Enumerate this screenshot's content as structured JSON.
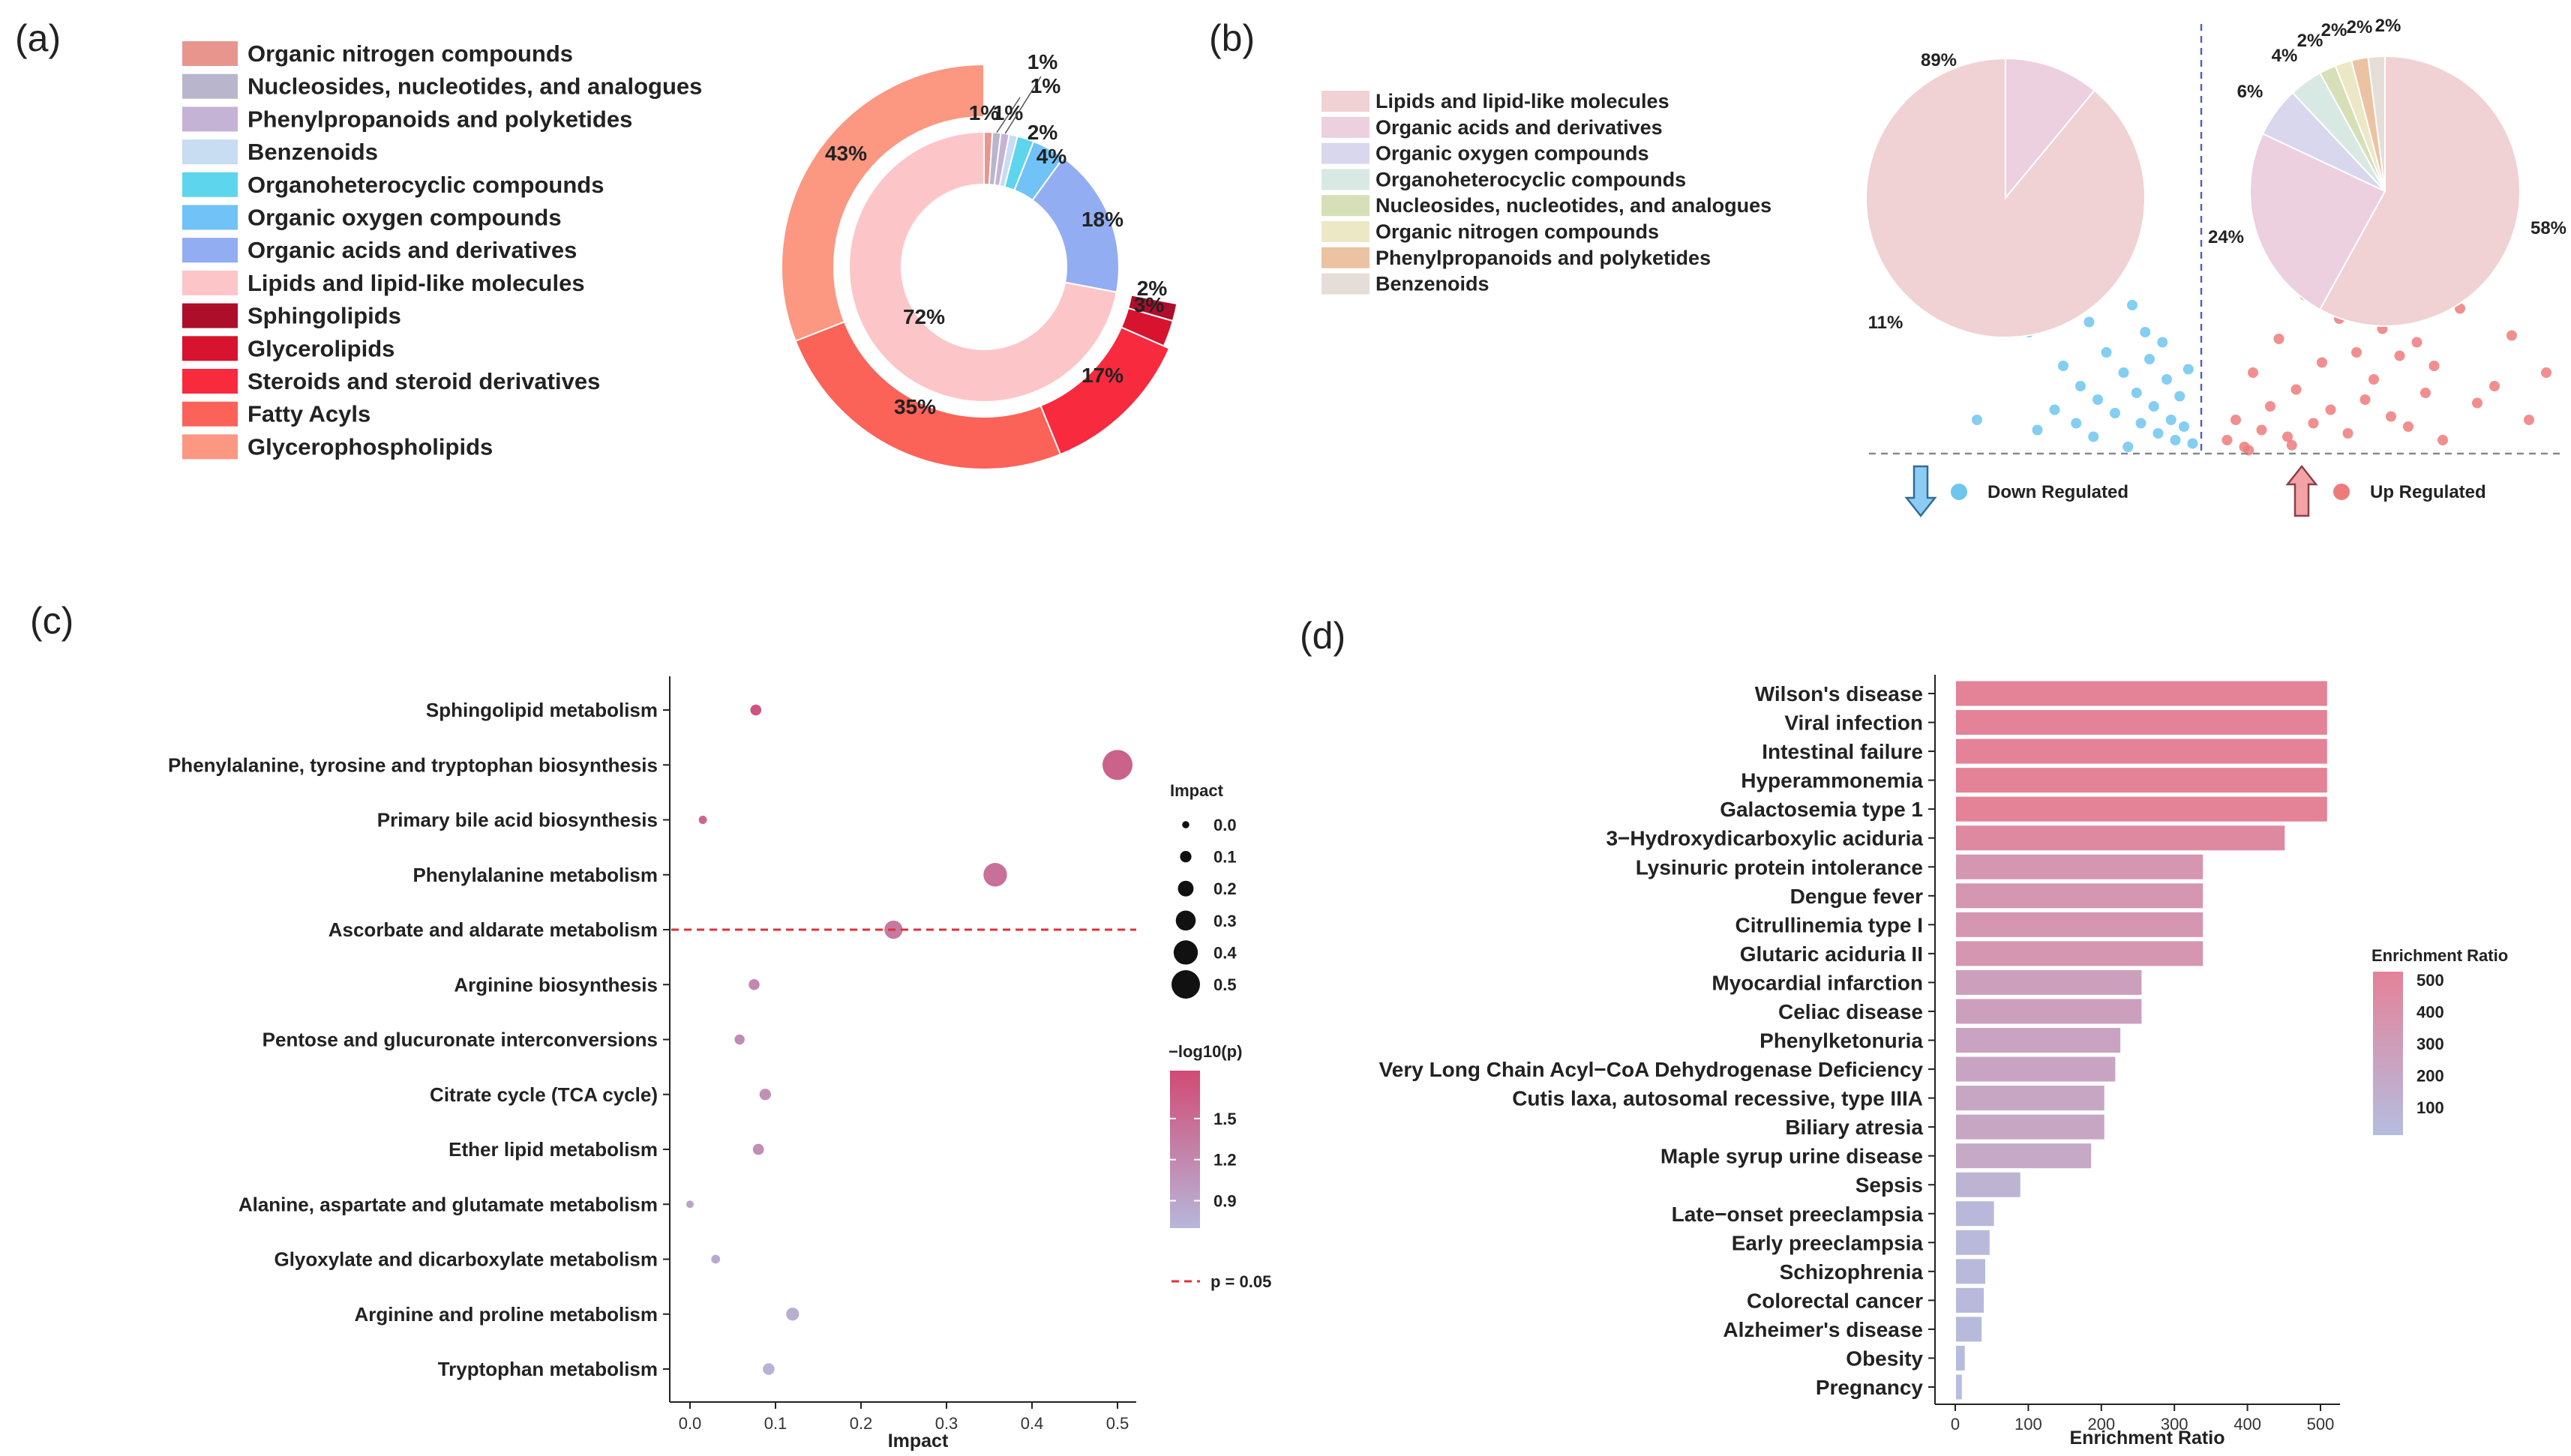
{
  "panels": {
    "a": "(a)",
    "b": "(b)",
    "c": "(c)",
    "d": "(d)"
  },
  "chart_data": [
    {
      "panel": "a",
      "type": "pie",
      "subtype": "nested-donut",
      "legend": [
        {
          "label": "Organic nitrogen compounds",
          "color": "#e8958e"
        },
        {
          "label": "Nucleosides, nucleotides, and analogues",
          "color": "#b9b5cc"
        },
        {
          "label": "Phenylpropanoids and polyketides",
          "color": "#c5b3d6"
        },
        {
          "label": "Benzenoids",
          "color": "#c8dcf2"
        },
        {
          "label": "Organoheterocyclic compounds",
          "color": "#5dd5ec"
        },
        {
          "label": "Organic oxygen compounds",
          "color": "#71c2f6"
        },
        {
          "label": "Organic acids and derivatives",
          "color": "#93adf2"
        },
        {
          "label": "Lipids and lipid-like molecules",
          "color": "#fcc6c8"
        },
        {
          "label": "Sphingolipids",
          "color": "#ad0e2a"
        },
        {
          "label": "Glycerolipids",
          "color": "#d8132f"
        },
        {
          "label": "Steroids and steroid derivatives",
          "color": "#f82a3e"
        },
        {
          "label": "Fatty Acyls",
          "color": "#fb6258"
        },
        {
          "label": "Glycerophospholipids",
          "color": "#fc9782"
        }
      ],
      "inner_ring": [
        {
          "label": "Organic nitrogen compounds",
          "value": 1,
          "text": "1%",
          "color": "#e8958e"
        },
        {
          "label": "Nucleosides, nucleotides, and analogues",
          "value": 1,
          "text": "1%",
          "color": "#b9b5cc"
        },
        {
          "label": "Phenylpropanoids and polyketides",
          "value": 1,
          "text": "1%",
          "color": "#c5b3d6"
        },
        {
          "label": "Benzenoids",
          "value": 1,
          "text": "",
          "color": "#c8dcf2"
        },
        {
          "label": "Organoheterocyclic compounds",
          "value": 2,
          "text": "2%",
          "color": "#5dd5ec"
        },
        {
          "label": "Organic oxygen compounds",
          "value": 4,
          "text": "4%",
          "color": "#71c2f6"
        },
        {
          "label": "Organic acids and derivatives",
          "value": 18,
          "text": "18%",
          "color": "#93adf2"
        },
        {
          "label": "Lipids and lipid-like molecules",
          "value": 72,
          "text": "72%",
          "color": "#fcc6c8"
        }
      ],
      "outer_ring": [
        {
          "label": "Sphingolipids",
          "value": 2,
          "text": "2%",
          "color": "#ad0e2a"
        },
        {
          "label": "Glycerolipids",
          "value": 3,
          "text": "3%",
          "color": "#d8132f"
        },
        {
          "label": "Steroids and steroid derivatives",
          "value": 17,
          "text": "17%",
          "color": "#f82a3e"
        },
        {
          "label": "Fatty Acyls",
          "value": 35,
          "text": "35%",
          "color": "#fb6258"
        },
        {
          "label": "Glycerophospholipids",
          "value": 43,
          "text": "43%",
          "color": "#fc9782"
        }
      ]
    },
    {
      "panel": "b",
      "type": "pie",
      "subtype": "volcano-with-pies",
      "legend": [
        {
          "label": "Lipids and lipid-like molecules",
          "color": "#f0d2d4"
        },
        {
          "label": "Organic acids and derivatives",
          "color": "#ecd0df"
        },
        {
          "label": "Organic oxygen compounds",
          "color": "#d9d7ed"
        },
        {
          "label": "Organoheterocyclic compounds",
          "color": "#d8e9e4"
        },
        {
          "label": "Nucleosides, nucleotides, and analogues",
          "color": "#d6dfb8"
        },
        {
          "label": "Organic nitrogen compounds",
          "color": "#ece8c6"
        },
        {
          "label": "Phenylpropanoids and polyketides",
          "color": "#ebc3a3"
        },
        {
          "label": "Benzenoids",
          "color": "#e5ded8"
        }
      ],
      "down_pie": [
        {
          "label": "Lipids and lipid-like molecules",
          "value": 89,
          "text": "89%",
          "color": "#f0d2d4"
        },
        {
          "label": "Organic acids and derivatives",
          "value": 11,
          "text": "11%",
          "color": "#ecd0df"
        }
      ],
      "up_pie": [
        {
          "label": "Lipids and lipid-like molecules",
          "value": 58,
          "text": "58%",
          "color": "#f0d2d4"
        },
        {
          "label": "Organic acids and derivatives",
          "value": 24,
          "text": "24%",
          "color": "#ecd0df"
        },
        {
          "label": "Organic oxygen compounds",
          "value": 6,
          "text": "6%",
          "color": "#d9d7ed"
        },
        {
          "label": "Organoheterocyclic compounds",
          "value": 4,
          "text": "4%",
          "color": "#d8e9e4"
        },
        {
          "label": "Nucleosides, nucleotides, and analogues",
          "value": 2,
          "text": "2%",
          "color": "#d6dfb8"
        },
        {
          "label": "Organic nitrogen compounds",
          "value": 2,
          "text": "2%",
          "color": "#ece8c6"
        },
        {
          "label": "Phenylpropanoids and polyketides",
          "value": 2,
          "text": "2%",
          "color": "#ebc3a3"
        },
        {
          "label": "Benzenoids",
          "value": 2,
          "text": "2%",
          "color": "#e5ded8"
        }
      ],
      "down_label": "Down Regulated",
      "up_label": "Up Regulated",
      "down_color": "#6ec6ef",
      "up_color": "#ee7b7b",
      "down_points": [
        [
          -2.4,
          4.8
        ],
        [
          -2.1,
          5.6
        ],
        [
          -2.0,
          3.6
        ],
        [
          -1.8,
          4.1
        ],
        [
          -1.6,
          2.6
        ],
        [
          -1.5,
          5.2
        ],
        [
          -1.4,
          2.0
        ],
        [
          -1.3,
          3.9
        ],
        [
          -1.2,
          1.6
        ],
        [
          -1.1,
          3.0
        ],
        [
          -1.0,
          1.2
        ],
        [
          -0.9,
          2.4
        ],
        [
          -0.8,
          4.4
        ],
        [
          -0.75,
          1.8
        ],
        [
          -0.7,
          0.9
        ],
        [
          -0.6,
          2.8
        ],
        [
          -0.55,
          1.4
        ],
        [
          -0.5,
          0.6
        ],
        [
          -0.45,
          3.3
        ],
        [
          -0.4,
          2.2
        ],
        [
          -0.35,
          1.0
        ],
        [
          -0.3,
          0.4
        ],
        [
          -0.25,
          1.7
        ],
        [
          -0.2,
          0.8
        ],
        [
          -0.15,
          2.5
        ],
        [
          -0.1,
          0.3
        ],
        [
          -1.7,
          1.3
        ],
        [
          -1.9,
          0.7
        ],
        [
          -2.6,
          1.0
        ],
        [
          -0.65,
          3.6
        ],
        [
          -1.25,
          0.5
        ],
        [
          -0.85,
          0.2
        ],
        [
          -1.45,
          0.9
        ]
      ],
      "up_points": [
        [
          0.3,
          0.4
        ],
        [
          0.4,
          1.0
        ],
        [
          0.5,
          0.2
        ],
        [
          0.6,
          2.4
        ],
        [
          0.7,
          0.7
        ],
        [
          0.8,
          1.4
        ],
        [
          0.9,
          3.4
        ],
        [
          1.0,
          0.5
        ],
        [
          1.1,
          1.9
        ],
        [
          1.2,
          4.7
        ],
        [
          1.3,
          0.9
        ],
        [
          1.4,
          2.7
        ],
        [
          1.5,
          1.3
        ],
        [
          1.6,
          4.0
        ],
        [
          1.7,
          0.6
        ],
        [
          1.8,
          3.0
        ],
        [
          1.9,
          1.6
        ],
        [
          2.0,
          2.2
        ],
        [
          2.1,
          3.7
        ],
        [
          2.2,
          1.1
        ],
        [
          2.3,
          2.9
        ],
        [
          2.4,
          0.8
        ],
        [
          2.5,
          3.3
        ],
        [
          2.6,
          1.8
        ],
        [
          2.7,
          2.6
        ],
        [
          2.8,
          0.4
        ],
        [
          3.0,
          4.3
        ],
        [
          3.2,
          1.5
        ],
        [
          3.4,
          2.0
        ],
        [
          3.6,
          3.5
        ],
        [
          3.8,
          1.0
        ],
        [
          4.0,
          2.4
        ],
        [
          5.5,
          0.6
        ],
        [
          0.55,
          0.1
        ],
        [
          1.05,
          0.25
        ]
      ]
    },
    {
      "panel": "c",
      "type": "scatter",
      "subtype": "bubble",
      "xlabel": "Impact",
      "xlim": [
        -0.02,
        0.52
      ],
      "xticks": [
        "0.0",
        "0.1",
        "0.2",
        "0.3",
        "0.4",
        "0.5"
      ],
      "xtick_values": [
        0,
        0.1,
        0.2,
        0.3,
        0.4,
        0.5
      ],
      "size_legend_title": "Impact",
      "size_legend": [
        "0.0",
        "0.1",
        "0.2",
        "0.3",
        "0.4",
        "0.5"
      ],
      "size_legend_values": [
        0,
        0.1,
        0.2,
        0.3,
        0.4,
        0.5
      ],
      "color_legend_title": "−log10(p)",
      "color_legend_ticks": [
        "1.5",
        "1.2",
        "0.9"
      ],
      "color_legend_values": [
        1.5,
        1.2,
        0.9
      ],
      "color_range": [
        0.7,
        1.85
      ],
      "color_low": "#b7b7db",
      "color_high": "#d14a74",
      "threshold_label": "p = 0.05",
      "threshold_value": 1.301,
      "threshold_pathway": "Ascorbate and aldarate metabolism",
      "points": [
        {
          "pathway": "Sphingolipid metabolism",
          "impact": 0.077,
          "logp": 1.75
        },
        {
          "pathway": "Phenylalanine, tyrosine and tryptophan biosynthesis",
          "impact": 0.5,
          "logp": 1.6
        },
        {
          "pathway": "Primary bile acid biosynthesis",
          "impact": 0.015,
          "logp": 1.55
        },
        {
          "pathway": "Phenylalanine metabolism",
          "impact": 0.357,
          "logp": 1.45
        },
        {
          "pathway": "Ascorbate and aldarate metabolism",
          "impact": 0.238,
          "logp": 1.35
        },
        {
          "pathway": "Arginine biosynthesis",
          "impact": 0.075,
          "logp": 1.2
        },
        {
          "pathway": "Pentose and glucuronate interconversions",
          "impact": 0.058,
          "logp": 1.15
        },
        {
          "pathway": "Citrate cycle (TCA cycle)",
          "impact": 0.088,
          "logp": 1.1
        },
        {
          "pathway": "Ether lipid metabolism",
          "impact": 0.08,
          "logp": 1.12
        },
        {
          "pathway": "Alanine, aspartate and glutamate metabolism",
          "impact": 0.0,
          "logp": 0.9
        },
        {
          "pathway": "Glyoxylate and dicarboxylate metabolism",
          "impact": 0.03,
          "logp": 0.85
        },
        {
          "pathway": "Arginine and proline metabolism",
          "impact": 0.12,
          "logp": 0.8
        },
        {
          "pathway": "Tryptophan metabolism",
          "impact": 0.092,
          "logp": 0.75
        }
      ]
    },
    {
      "panel": "d",
      "type": "bar",
      "orientation": "horizontal",
      "xlabel": "Enrichment Ratio",
      "xlim": [
        -20,
        530
      ],
      "xticks": [
        "0",
        "100",
        "200",
        "300",
        "400",
        "500"
      ],
      "xtick_values": [
        0,
        100,
        200,
        300,
        400,
        500
      ],
      "color_legend_title": "Enrichment Ratio",
      "color_legend_ticks": [
        "500",
        "400",
        "300",
        "200",
        "100"
      ],
      "color_legend_values": [
        500,
        400,
        300,
        200,
        100
      ],
      "color_low": "#b5bde0",
      "color_high": "#e48298",
      "categories": [
        "Wilson's disease",
        "Viral infection",
        "Intestinal failure",
        "Hyperammonemia",
        "Galactosemia type 1",
        "3−Hydroxydicarboxylic aciduria",
        "Lysinuric protein intolerance",
        "Dengue fever",
        "Citrullinemia type I",
        "Glutaric aciduria II",
        "Myocardial infarction",
        "Celiac disease",
        "Phenylketonuria",
        "Very Long Chain Acyl−CoA Dehydrogenase Deficiency",
        "Cutis laxa, autosomal recessive, type IIIA",
        "Biliary atresia",
        "Maple syrup urine disease",
        "Sepsis",
        "Late−onset preeclampsia",
        "Early preeclampsia",
        "Schizophrenia",
        "Colorectal cancer",
        "Alzheimer's disease",
        "Obesity",
        "Pregnancy"
      ],
      "values": [
        508,
        508,
        508,
        508,
        508,
        450,
        338,
        338,
        338,
        338,
        254,
        254,
        225,
        218,
        203,
        203,
        185,
        88,
        52,
        46,
        40,
        38,
        35,
        12,
        8
      ]
    }
  ]
}
